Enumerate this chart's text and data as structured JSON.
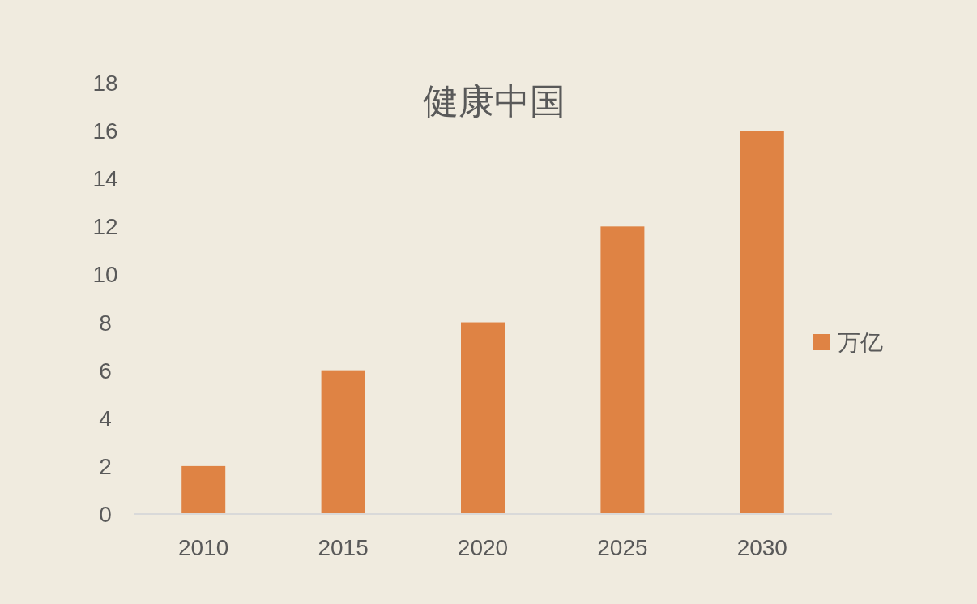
{
  "chart_data": {
    "type": "bar",
    "title": "健康中国",
    "categories": [
      "2010",
      "2015",
      "2020",
      "2025",
      "2030"
    ],
    "series": [
      {
        "name": "万亿",
        "color": "#df8344",
        "values": [
          2,
          6,
          8,
          12,
          16
        ]
      }
    ],
    "ylim": [
      0,
      18
    ],
    "yticks": [
      0,
      2,
      4,
      6,
      8,
      10,
      12,
      14,
      16,
      18
    ],
    "grid": false,
    "legend": "right"
  }
}
